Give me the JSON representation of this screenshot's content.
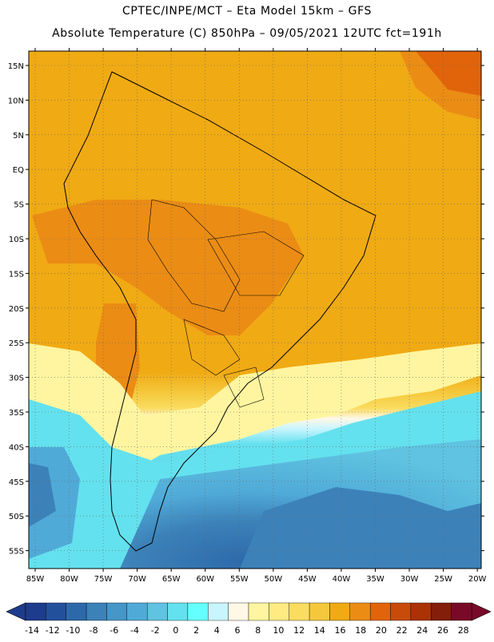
{
  "header": {
    "line1": "CPTEC/INPE/MCT –  Eta Model 15km – GFS",
    "line2": "Absolute Temperature (C) 850hPa – 09/05/2021 12UTC fct=191h"
  },
  "map": {
    "lat_labels": [
      "15N",
      "10N",
      "5N",
      "EQ",
      "5S",
      "10S",
      "15S",
      "20S",
      "25S",
      "30S",
      "35S",
      "40S",
      "45S",
      "50S",
      "55S"
    ],
    "lon_labels": [
      "85W",
      "80W",
      "75W",
      "70W",
      "65W",
      "60W",
      "55W",
      "50W",
      "45W",
      "40W",
      "35W",
      "30W",
      "25W",
      "20W"
    ]
  },
  "colorbar": {
    "ticks": [
      "-14",
      "-12",
      "-10",
      "-8",
      "-6",
      "-4",
      "-2",
      "0",
      "2",
      "4",
      "6",
      "8",
      "10",
      "12",
      "14",
      "16",
      "18",
      "20",
      "22",
      "24",
      "26",
      "28"
    ],
    "colors": [
      "#1e3c8c",
      "#23509b",
      "#2d69aa",
      "#3c82b9",
      "#4696c8",
      "#50aad7",
      "#5fc3e1",
      "#64e1ee",
      "#64ffff",
      "#c8f5ff",
      "#fff8e6",
      "#fff5a0",
      "#ffeb82",
      "#fadc5f",
      "#f5c83c",
      "#f0aa14",
      "#eb8c14",
      "#e1640a",
      "#c84b0a",
      "#aa3205",
      "#821e0a",
      "#780a28"
    ]
  }
}
